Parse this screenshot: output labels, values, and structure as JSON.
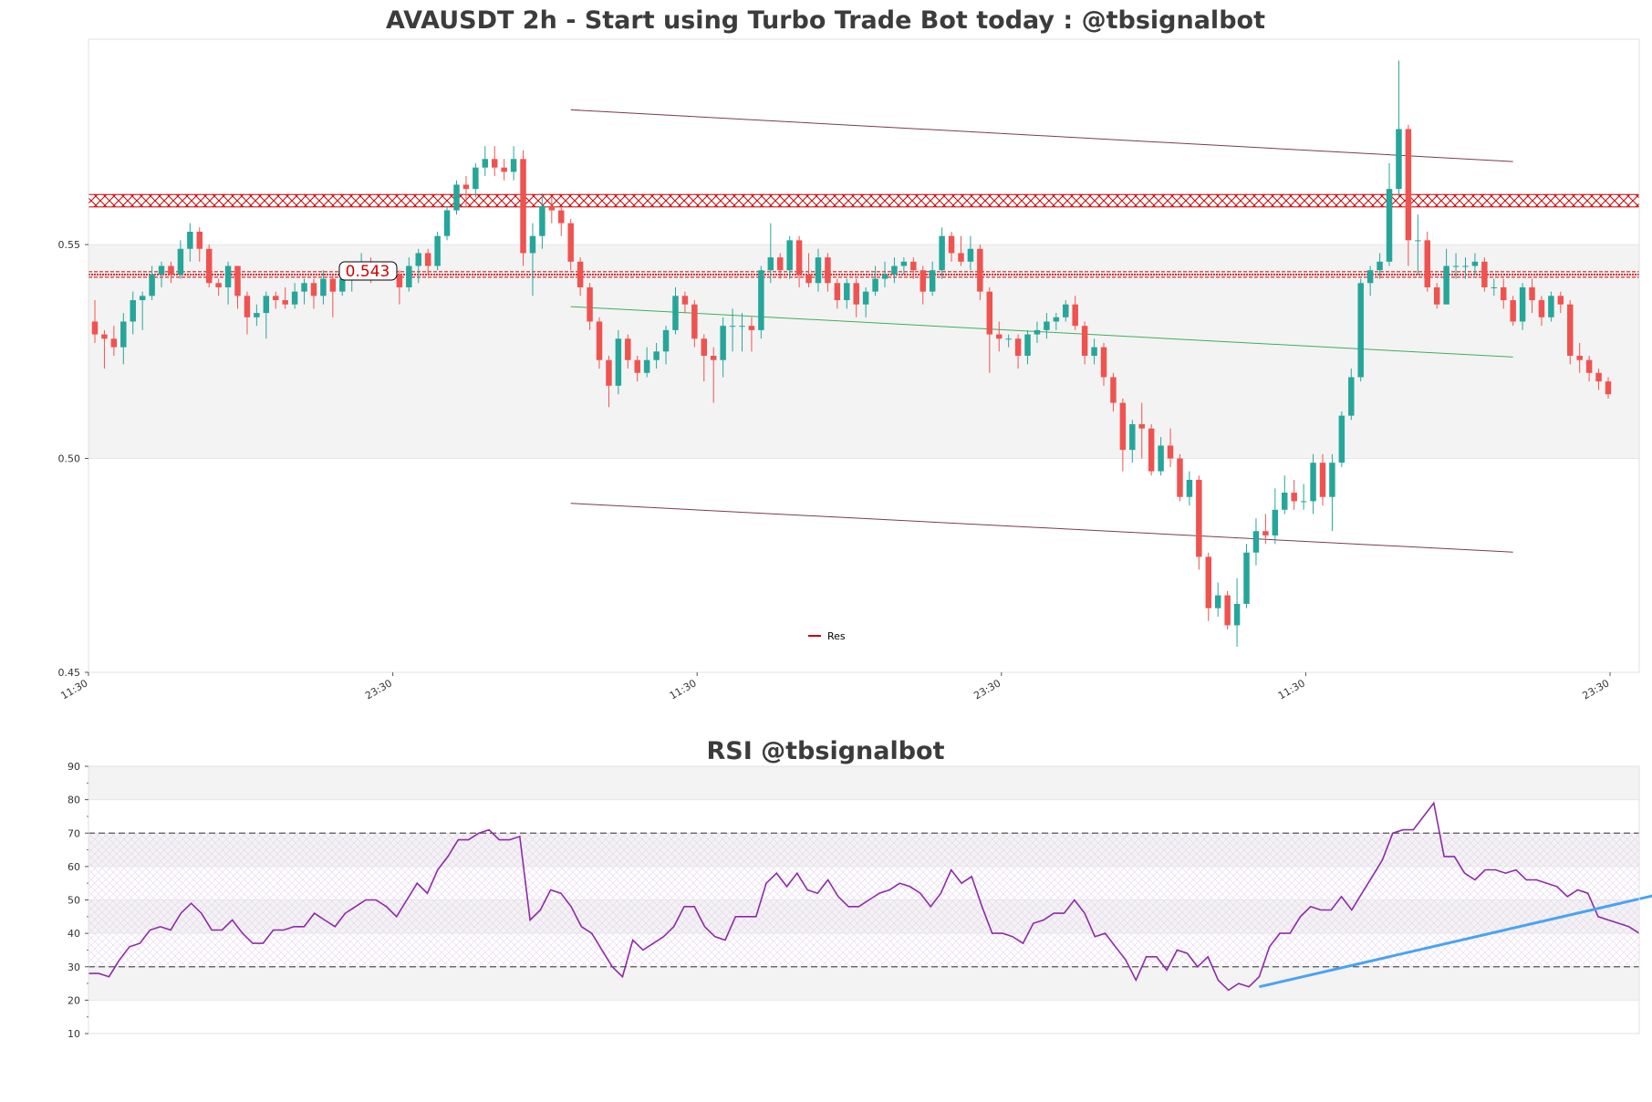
{
  "chart_data": [
    {
      "type": "candlestick",
      "title": "AVAUSDT 2h - Start using Turbo Trade Bot today : @tbsignalbot",
      "ylim": [
        0.45,
        0.598
      ],
      "y_ticks": [
        "0.45",
        "0.50",
        "0.55"
      ],
      "x_ticks": [
        "11:30",
        "23:30",
        "11:30",
        "23:30",
        "11:30",
        "23:30"
      ],
      "shaded_band": [
        0.5,
        0.55
      ],
      "resistance_zone": [
        0.5588,
        0.5617
      ],
      "resistance_level": 0.543,
      "price_label": "0.543",
      "legend": [
        {
          "label": "Res",
          "color": "#cc0000"
        }
      ],
      "colors": {
        "up": "#26a69a",
        "down": "#ef5350",
        "channel": "#7b3b4e",
        "trend": "#3fae5a",
        "resistance": "#cc0000"
      },
      "channel_upper": {
        "start": [
          50,
          0.5815
        ],
        "end": [
          149,
          0.5694
        ]
      },
      "channel_lower": {
        "start": [
          50,
          0.4895
        ],
        "end": [
          149,
          0.4781
        ]
      },
      "trend_line": {
        "start": [
          50,
          0.5355
        ],
        "end": [
          149,
          0.5237
        ]
      },
      "candles": [
        [
          0.532,
          0.529,
          0.537,
          0.527
        ],
        [
          0.529,
          0.528,
          0.53,
          0.521
        ],
        [
          0.528,
          0.526,
          0.531,
          0.524
        ],
        [
          0.526,
          0.532,
          0.534,
          0.522
        ],
        [
          0.532,
          0.537,
          0.539,
          0.529
        ],
        [
          0.537,
          0.538,
          0.539,
          0.53
        ],
        [
          0.538,
          0.543,
          0.545,
          0.537
        ],
        [
          0.543,
          0.545,
          0.546,
          0.54
        ],
        [
          0.545,
          0.543,
          0.546,
          0.541
        ],
        [
          0.543,
          0.549,
          0.551,
          0.542
        ],
        [
          0.549,
          0.553,
          0.555,
          0.546
        ],
        [
          0.553,
          0.549,
          0.554,
          0.546
        ],
        [
          0.549,
          0.541,
          0.55,
          0.54
        ],
        [
          0.541,
          0.54,
          0.542,
          0.538
        ],
        [
          0.54,
          0.545,
          0.546,
          0.536
        ],
        [
          0.545,
          0.538,
          0.545,
          0.535
        ],
        [
          0.538,
          0.533,
          0.539,
          0.529
        ],
        [
          0.533,
          0.534,
          0.536,
          0.531
        ],
        [
          0.534,
          0.538,
          0.539,
          0.528
        ],
        [
          0.538,
          0.537,
          0.539,
          0.535
        ],
        [
          0.537,
          0.536,
          0.54,
          0.535
        ],
        [
          0.536,
          0.539,
          0.541,
          0.535
        ],
        [
          0.539,
          0.541,
          0.542,
          0.536
        ],
        [
          0.541,
          0.538,
          0.542,
          0.535
        ],
        [
          0.538,
          0.542,
          0.544,
          0.536
        ],
        [
          0.542,
          0.539,
          0.543,
          0.533
        ],
        [
          0.539,
          0.542,
          0.545,
          0.538
        ],
        [
          0.542,
          0.544,
          0.546,
          0.539
        ],
        [
          0.544,
          0.546,
          0.548,
          0.542
        ],
        [
          0.546,
          0.543,
          0.547,
          0.541
        ],
        [
          0.543,
          0.544,
          0.546,
          0.542
        ],
        [
          0.544,
          0.543,
          0.545,
          0.542
        ],
        [
          0.543,
          0.54,
          0.544,
          0.536
        ],
        [
          0.54,
          0.545,
          0.547,
          0.539
        ],
        [
          0.545,
          0.548,
          0.549,
          0.541
        ],
        [
          0.548,
          0.545,
          0.549,
          0.543
        ],
        [
          0.545,
          0.552,
          0.553,
          0.544
        ],
        [
          0.552,
          0.558,
          0.559,
          0.551
        ],
        [
          0.558,
          0.564,
          0.565,
          0.557
        ],
        [
          0.564,
          0.563,
          0.566,
          0.559
        ],
        [
          0.563,
          0.568,
          0.569,
          0.561
        ],
        [
          0.568,
          0.57,
          0.573,
          0.566
        ],
        [
          0.57,
          0.568,
          0.573,
          0.566
        ],
        [
          0.568,
          0.567,
          0.57,
          0.565
        ],
        [
          0.567,
          0.57,
          0.573,
          0.565
        ],
        [
          0.57,
          0.548,
          0.572,
          0.545
        ],
        [
          0.548,
          0.552,
          0.555,
          0.538
        ],
        [
          0.552,
          0.559,
          0.562,
          0.549
        ],
        [
          0.559,
          0.558,
          0.561,
          0.555
        ],
        [
          0.558,
          0.555,
          0.559,
          0.552
        ],
        [
          0.555,
          0.546,
          0.556,
          0.544
        ],
        [
          0.546,
          0.54,
          0.547,
          0.538
        ],
        [
          0.54,
          0.532,
          0.541,
          0.53
        ],
        [
          0.532,
          0.523,
          0.533,
          0.521
        ],
        [
          0.523,
          0.517,
          0.524,
          0.512
        ],
        [
          0.517,
          0.528,
          0.53,
          0.515
        ],
        [
          0.528,
          0.523,
          0.529,
          0.521
        ],
        [
          0.523,
          0.52,
          0.524,
          0.518
        ],
        [
          0.52,
          0.523,
          0.526,
          0.519
        ],
        [
          0.523,
          0.525,
          0.527,
          0.521
        ],
        [
          0.525,
          0.53,
          0.531,
          0.522
        ],
        [
          0.53,
          0.538,
          0.54,
          0.529
        ],
        [
          0.538,
          0.536,
          0.539,
          0.534
        ],
        [
          0.536,
          0.528,
          0.537,
          0.526
        ],
        [
          0.528,
          0.524,
          0.529,
          0.518
        ],
        [
          0.524,
          0.523,
          0.526,
          0.513
        ],
        [
          0.523,
          0.531,
          0.533,
          0.519
        ],
        [
          0.531,
          0.531,
          0.535,
          0.525
        ],
        [
          0.531,
          0.531,
          0.534,
          0.525
        ],
        [
          0.531,
          0.53,
          0.533,
          0.525
        ],
        [
          0.53,
          0.544,
          0.545,
          0.528
        ],
        [
          0.544,
          0.547,
          0.555,
          0.541
        ],
        [
          0.547,
          0.544,
          0.548,
          0.542
        ],
        [
          0.544,
          0.551,
          0.552,
          0.542
        ],
        [
          0.551,
          0.543,
          0.552,
          0.54
        ],
        [
          0.543,
          0.541,
          0.548,
          0.54
        ],
        [
          0.541,
          0.547,
          0.549,
          0.539
        ],
        [
          0.547,
          0.541,
          0.548,
          0.539
        ],
        [
          0.541,
          0.537,
          0.542,
          0.535
        ],
        [
          0.537,
          0.541,
          0.542,
          0.535
        ],
        [
          0.541,
          0.536,
          0.542,
          0.533
        ],
        [
          0.536,
          0.539,
          0.54,
          0.533
        ],
        [
          0.539,
          0.542,
          0.545,
          0.538
        ],
        [
          0.542,
          0.543,
          0.546,
          0.54
        ],
        [
          0.543,
          0.545,
          0.547,
          0.541
        ],
        [
          0.545,
          0.546,
          0.547,
          0.543
        ],
        [
          0.546,
          0.544,
          0.547,
          0.542
        ],
        [
          0.544,
          0.539,
          0.545,
          0.536
        ],
        [
          0.539,
          0.544,
          0.546,
          0.538
        ],
        [
          0.544,
          0.552,
          0.554,
          0.542
        ],
        [
          0.552,
          0.548,
          0.553,
          0.546
        ],
        [
          0.548,
          0.546,
          0.552,
          0.545
        ],
        [
          0.546,
          0.549,
          0.552,
          0.544
        ],
        [
          0.549,
          0.539,
          0.55,
          0.537
        ],
        [
          0.539,
          0.529,
          0.54,
          0.52
        ],
        [
          0.529,
          0.528,
          0.532,
          0.525
        ],
        [
          0.528,
          0.528,
          0.529,
          0.526
        ],
        [
          0.528,
          0.524,
          0.529,
          0.521
        ],
        [
          0.524,
          0.529,
          0.53,
          0.522
        ],
        [
          0.529,
          0.53,
          0.532,
          0.527
        ],
        [
          0.53,
          0.532,
          0.534,
          0.528
        ],
        [
          0.532,
          0.533,
          0.534,
          0.53
        ],
        [
          0.533,
          0.536,
          0.537,
          0.532
        ],
        [
          0.536,
          0.531,
          0.538,
          0.53
        ],
        [
          0.531,
          0.524,
          0.532,
          0.522
        ],
        [
          0.524,
          0.526,
          0.528,
          0.522
        ],
        [
          0.526,
          0.519,
          0.527,
          0.517
        ],
        [
          0.519,
          0.513,
          0.52,
          0.511
        ],
        [
          0.513,
          0.502,
          0.514,
          0.497
        ],
        [
          0.502,
          0.508,
          0.509,
          0.499
        ],
        [
          0.508,
          0.507,
          0.513,
          0.5
        ],
        [
          0.507,
          0.497,
          0.508,
          0.496
        ],
        [
          0.497,
          0.503,
          0.505,
          0.496
        ],
        [
          0.503,
          0.5,
          0.507,
          0.498
        ],
        [
          0.5,
          0.491,
          0.501,
          0.49
        ],
        [
          0.491,
          0.495,
          0.497,
          0.489
        ],
        [
          0.495,
          0.477,
          0.496,
          0.474
        ],
        [
          0.477,
          0.465,
          0.478,
          0.462
        ],
        [
          0.465,
          0.468,
          0.471,
          0.463
        ],
        [
          0.468,
          0.461,
          0.469,
          0.46
        ],
        [
          0.461,
          0.466,
          0.472,
          0.456
        ],
        [
          0.466,
          0.478,
          0.48,
          0.465
        ],
        [
          0.478,
          0.483,
          0.486,
          0.475
        ],
        [
          0.483,
          0.482,
          0.487,
          0.48
        ],
        [
          0.482,
          0.488,
          0.493,
          0.48
        ],
        [
          0.488,
          0.492,
          0.496,
          0.487
        ],
        [
          0.492,
          0.49,
          0.495,
          0.488
        ],
        [
          0.49,
          0.49,
          0.494,
          0.488
        ],
        [
          0.49,
          0.499,
          0.501,
          0.487
        ],
        [
          0.499,
          0.491,
          0.501,
          0.489
        ],
        [
          0.491,
          0.499,
          0.501,
          0.483
        ],
        [
          0.499,
          0.51,
          0.511,
          0.498
        ],
        [
          0.51,
          0.519,
          0.521,
          0.509
        ],
        [
          0.519,
          0.541,
          0.542,
          0.518
        ],
        [
          0.541,
          0.544,
          0.545,
          0.538
        ],
        [
          0.544,
          0.546,
          0.548,
          0.542
        ],
        [
          0.546,
          0.563,
          0.569,
          0.545
        ],
        [
          0.563,
          0.577,
          0.593,
          0.561
        ],
        [
          0.577,
          0.551,
          0.578,
          0.545
        ],
        [
          0.551,
          0.551,
          0.557,
          0.543
        ],
        [
          0.551,
          0.54,
          0.553,
          0.539
        ],
        [
          0.54,
          0.536,
          0.541,
          0.535
        ],
        [
          0.536,
          0.545,
          0.549,
          0.537
        ],
        [
          0.545,
          0.545,
          0.548,
          0.542
        ],
        [
          0.545,
          0.545,
          0.547,
          0.542
        ],
        [
          0.545,
          0.546,
          0.548,
          0.543
        ],
        [
          0.546,
          0.54,
          0.547,
          0.539
        ],
        [
          0.54,
          0.54,
          0.542,
          0.538
        ],
        [
          0.54,
          0.537,
          0.542,
          0.535
        ],
        [
          0.537,
          0.532,
          0.538,
          0.531
        ],
        [
          0.532,
          0.54,
          0.541,
          0.53
        ],
        [
          0.54,
          0.537,
          0.542,
          0.534
        ],
        [
          0.537,
          0.533,
          0.538,
          0.531
        ],
        [
          0.533,
          0.538,
          0.539,
          0.532
        ],
        [
          0.538,
          0.536,
          0.539,
          0.534
        ],
        [
          0.536,
          0.524,
          0.537,
          0.522
        ],
        [
          0.524,
          0.523,
          0.527,
          0.52
        ],
        [
          0.523,
          0.52,
          0.524,
          0.518
        ],
        [
          0.52,
          0.518,
          0.521,
          0.516
        ],
        [
          0.518,
          0.515,
          0.519,
          0.514
        ]
      ]
    },
    {
      "type": "line",
      "title": "RSI @tbsignalbot",
      "ylim": [
        10,
        90
      ],
      "y_ticks": [
        "10",
        "20",
        "30",
        "40",
        "50",
        "60",
        "70",
        "80",
        "90"
      ],
      "overbought": 70,
      "oversold": 30,
      "colors": {
        "rsi": "#8e2aa8",
        "trend": "#4aa3f0",
        "dashed": "#555555"
      },
      "trend_line": {
        "start": [
          114,
          24
        ],
        "end": [
          159,
          56
        ]
      },
      "series": [
        {
          "values": [
            28,
            28,
            27,
            32,
            36,
            37,
            41,
            42,
            41,
            46,
            49,
            46,
            41,
            41,
            44,
            40,
            37,
            37,
            41,
            41,
            42,
            42,
            46,
            44,
            42,
            46,
            48,
            50,
            50,
            48,
            45,
            50,
            55,
            52,
            59,
            63,
            68,
            68,
            70,
            71,
            68,
            68,
            69,
            44,
            47,
            53,
            52,
            48,
            42,
            40,
            35,
            30,
            27,
            38,
            35,
            37,
            39,
            42,
            48,
            48,
            42,
            39,
            38,
            45,
            45,
            45,
            55,
            58,
            54,
            58,
            53,
            52,
            56,
            51,
            48,
            48,
            50,
            52,
            53,
            55,
            54,
            52,
            48,
            52,
            59,
            55,
            57,
            48,
            40,
            40,
            39,
            37,
            43,
            44,
            46,
            46,
            50,
            46,
            39,
            40,
            36,
            32,
            26,
            33,
            33,
            29,
            35,
            34,
            30,
            33,
            26,
            23,
            25,
            24,
            27,
            36,
            40,
            40,
            45,
            48,
            47,
            47,
            51,
            47,
            52,
            57,
            62,
            70,
            71,
            71,
            75,
            79,
            63,
            63,
            58,
            56,
            59,
            59,
            58,
            59,
            56,
            56,
            55,
            54,
            51,
            53,
            52,
            45,
            44,
            43,
            42,
            40
          ]
        }
      ]
    }
  ]
}
